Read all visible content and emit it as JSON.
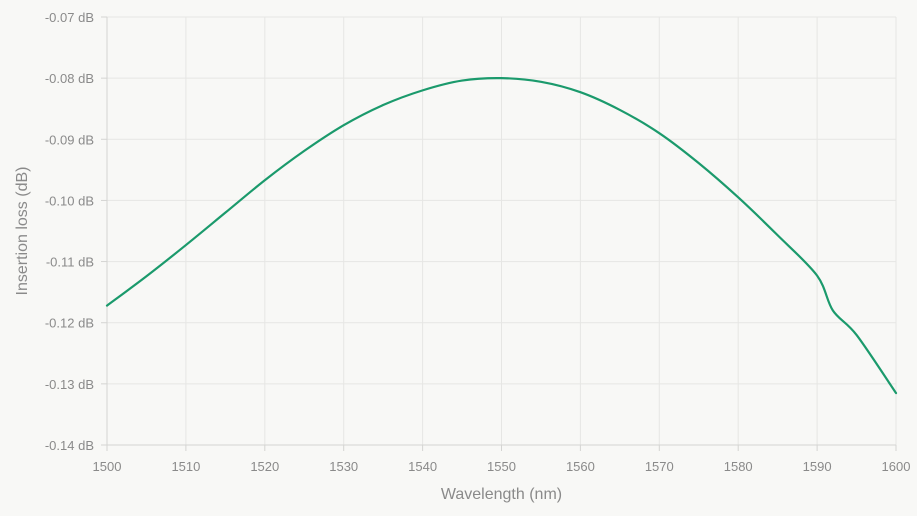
{
  "chart_data": {
    "type": "line",
    "title": "",
    "xlabel": "Wavelength (nm)",
    "ylabel": "Insertion loss (dB)",
    "xlim": [
      1500,
      1600
    ],
    "ylim": [
      -0.14,
      -0.07
    ],
    "x_ticks": [
      1500,
      1510,
      1520,
      1530,
      1540,
      1550,
      1560,
      1570,
      1580,
      1590,
      1600
    ],
    "x_tick_labels": [
      "1500",
      "1510",
      "1520",
      "1530",
      "1540",
      "1550",
      "1560",
      "1570",
      "1580",
      "1590",
      "1600"
    ],
    "y_ticks": [
      -0.07,
      -0.08,
      -0.09,
      -0.1,
      -0.11,
      -0.12,
      -0.13,
      -0.14
    ],
    "y_tick_labels": [
      "-0.07 dB",
      "-0.08 dB",
      "-0.09 dB",
      "-0.10 dB",
      "-0.11 dB",
      "-0.12 dB",
      "-0.13 dB",
      "-0.14 dB"
    ],
    "grid": true,
    "legend": "none",
    "series": [
      {
        "color": "#1b9a6c",
        "x": [
          1500,
          1505,
          1510,
          1515,
          1520,
          1525,
          1530,
          1535,
          1540,
          1545,
          1550,
          1555,
          1560,
          1565,
          1570,
          1575,
          1580,
          1585,
          1590,
          1592,
          1595,
          1600
        ],
        "y": [
          -0.1172,
          -0.1124,
          -0.1073,
          -0.102,
          -0.0967,
          -0.0919,
          -0.0877,
          -0.0844,
          -0.082,
          -0.0804,
          -0.08,
          -0.0806,
          -0.0823,
          -0.0852,
          -0.089,
          -0.0939,
          -0.0995,
          -0.1057,
          -0.1123,
          -0.118,
          -0.122,
          -0.1315
        ]
      }
    ]
  }
}
